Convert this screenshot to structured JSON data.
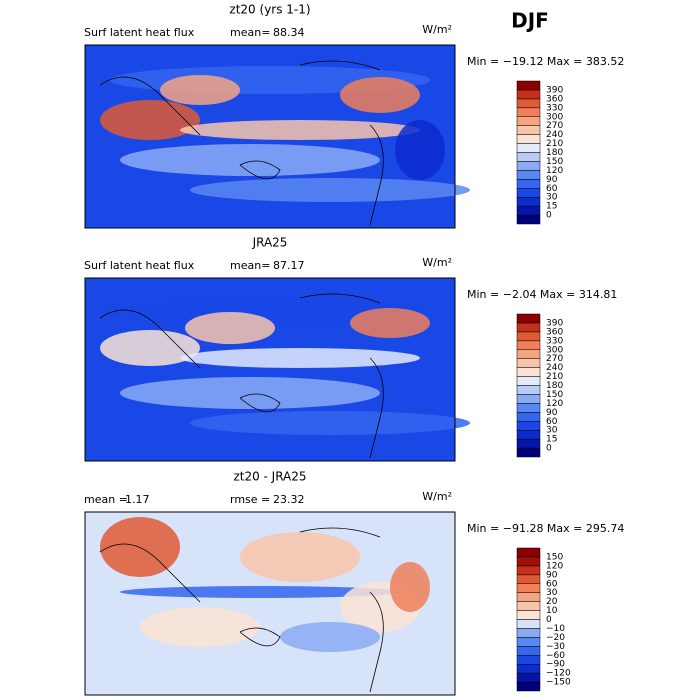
{
  "season": "DJF",
  "panels": [
    {
      "title": "zt20 (yrs 1-1)",
      "variable": "Surf latent heat flux",
      "stat1_label": "mean=",
      "stat1_value": "88.34",
      "units": "W/m²",
      "min_max": "Min = −19.12 Max = 383.52",
      "colorbar": {
        "labels": [
          "0",
          "15",
          "30",
          "60",
          "90",
          "120",
          "150",
          "180",
          "210",
          "240",
          "270",
          "300",
          "330",
          "360",
          "390"
        ],
        "colors": [
          "#00007f",
          "#0614a8",
          "#0c2ccc",
          "#1a48e6",
          "#3466ee",
          "#5a88f2",
          "#8aaaf4",
          "#b8ccf7",
          "#e4ebfb",
          "#fbe4d6",
          "#f9c5aa",
          "#f5a482",
          "#ef805a",
          "#e05a35",
          "#c4301a",
          "#8b0000"
        ]
      }
    },
    {
      "title": "JRA25",
      "variable": "Surf latent heat flux",
      "stat1_label": "mean=",
      "stat1_value": "87.17",
      "units": "W/m²",
      "min_max": "Min = −2.04 Max = 314.81",
      "colorbar": {
        "labels": [
          "0",
          "15",
          "30",
          "60",
          "90",
          "120",
          "150",
          "180",
          "210",
          "240",
          "270",
          "300",
          "330",
          "360",
          "390"
        ],
        "colors": [
          "#00007f",
          "#0614a8",
          "#0c2ccc",
          "#1a48e6",
          "#3466ee",
          "#5a88f2",
          "#8aaaf4",
          "#b8ccf7",
          "#e4ebfb",
          "#fbe4d6",
          "#f9c5aa",
          "#f5a482",
          "#ef805a",
          "#e05a35",
          "#c4301a",
          "#8b0000"
        ]
      }
    },
    {
      "title": "zt20 - JRA25",
      "stat1_label": "mean =",
      "stat1_value": "1.17",
      "stat2_label": "rmse =",
      "stat2_value": "23.32",
      "units": "W/m²",
      "min_max": "Min = −91.28 Max = 295.74",
      "colorbar": {
        "labels": [
          "−150",
          "−120",
          "−90",
          "−60",
          "−30",
          "−20",
          "−10",
          "0",
          "10",
          "20",
          "30",
          "60",
          "90",
          "120",
          "150"
        ],
        "colors": [
          "#00007f",
          "#0614a8",
          "#0c2ccc",
          "#1a48e6",
          "#3466ee",
          "#5a88f2",
          "#8aaaf4",
          "#d6e3f8",
          "#fbe4d6",
          "#f9c5aa",
          "#f5a482",
          "#ef805a",
          "#e05a35",
          "#c4301a",
          "#a01008",
          "#8b0000"
        ]
      }
    }
  ]
}
